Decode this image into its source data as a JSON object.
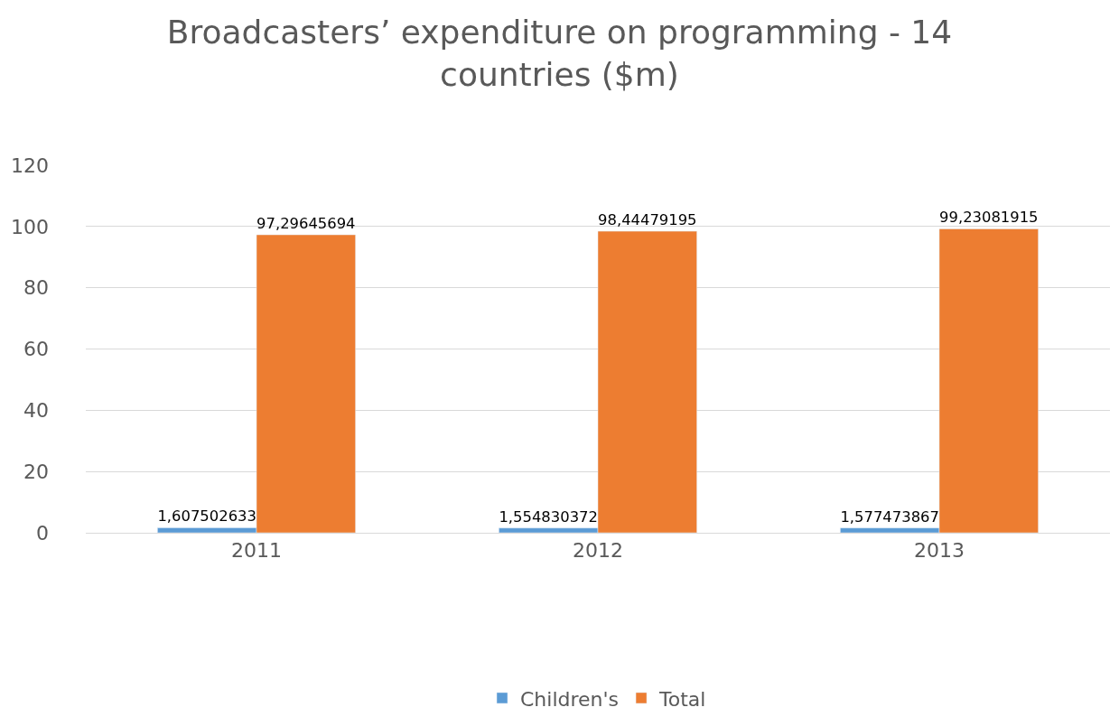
{
  "chart_data": {
    "type": "bar",
    "title": "Broadcasters’ expenditure on programming - 14 countries ($m)",
    "categories": [
      "2011",
      "2012",
      "2013"
    ],
    "series": [
      {
        "name": "Children's",
        "color": "#5b9bd5",
        "values": [
          1.607502633,
          1.554830372,
          1.577473867
        ],
        "value_labels": [
          "1,607502633",
          "1,554830372",
          "1,577473867"
        ]
      },
      {
        "name": "Total",
        "color": "#ed7d31",
        "values": [
          97.29645694,
          98.44479195,
          99.23081915
        ],
        "value_labels": [
          "97,29645694",
          "98,44479195",
          "99,23081915"
        ]
      }
    ],
    "ylim": [
      0,
      120
    ],
    "yticks": [
      0,
      20,
      40,
      60,
      80,
      100,
      120
    ],
    "grid": "y",
    "legend": "bottom"
  }
}
